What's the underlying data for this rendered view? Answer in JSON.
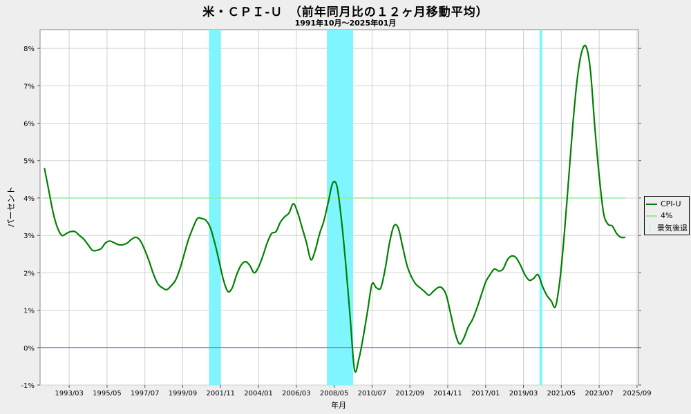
{
  "chart_data": {
    "type": "line",
    "title": "米・ＣＰＩ-Ｕ　（前年同月比の１２ヶ月移動平均）",
    "subtitle": "1991年10月～2025年01月",
    "xlabel": "年月",
    "ylabel": "パーセント",
    "ylim": [
      -1,
      8.5
    ],
    "yticks": [
      -1,
      0,
      1,
      2,
      3,
      4,
      5,
      6,
      7,
      8
    ],
    "ytick_labels": [
      "-1%",
      "0%",
      "1%",
      "2%",
      "3%",
      "4%",
      "5%",
      "6%",
      "7%",
      "8%"
    ],
    "xlim": [
      "1991-07",
      "2025-10"
    ],
    "xtick_labels": [
      "1993/03",
      "1995/05",
      "1997/07",
      "1999/09",
      "2001/11",
      "2004/01",
      "2006/03",
      "2008/05",
      "2010/07",
      "2012/09",
      "2014/11",
      "2017/01",
      "2019/03",
      "2021/05",
      "2023/07",
      "2025/09"
    ],
    "grid": true,
    "legend_position": "right",
    "recessions": [
      {
        "start": "2001-03",
        "end": "2001-11"
      },
      {
        "start": "2007-12",
        "end": "2009-06"
      },
      {
        "start": "2020-02",
        "end": "2020-04"
      }
    ],
    "series": [
      {
        "name": "CPI-U",
        "color": "#008000",
        "points": [
          [
            "1991-10",
            4.8
          ],
          [
            "1992-01",
            4.2
          ],
          [
            "1992-04",
            3.6
          ],
          [
            "1992-07",
            3.2
          ],
          [
            "1992-10",
            3.0
          ],
          [
            "1993-01",
            3.05
          ],
          [
            "1993-04",
            3.1
          ],
          [
            "1993-07",
            3.1
          ],
          [
            "1993-10",
            3.0
          ],
          [
            "1994-01",
            2.9
          ],
          [
            "1994-04",
            2.75
          ],
          [
            "1994-07",
            2.6
          ],
          [
            "1994-10",
            2.6
          ],
          [
            "1995-01",
            2.65
          ],
          [
            "1995-04",
            2.8
          ],
          [
            "1995-07",
            2.85
          ],
          [
            "1995-10",
            2.8
          ],
          [
            "1996-01",
            2.75
          ],
          [
            "1996-04",
            2.75
          ],
          [
            "1996-07",
            2.8
          ],
          [
            "1996-10",
            2.9
          ],
          [
            "1997-01",
            2.95
          ],
          [
            "1997-04",
            2.85
          ],
          [
            "1997-07",
            2.6
          ],
          [
            "1997-10",
            2.3
          ],
          [
            "1998-01",
            1.95
          ],
          [
            "1998-04",
            1.7
          ],
          [
            "1998-07",
            1.6
          ],
          [
            "1998-10",
            1.55
          ],
          [
            "1999-01",
            1.65
          ],
          [
            "1999-04",
            1.8
          ],
          [
            "1999-07",
            2.1
          ],
          [
            "1999-10",
            2.5
          ],
          [
            "2000-01",
            2.9
          ],
          [
            "2000-04",
            3.2
          ],
          [
            "2000-07",
            3.45
          ],
          [
            "2000-10",
            3.45
          ],
          [
            "2001-01",
            3.4
          ],
          [
            "2001-04",
            3.2
          ],
          [
            "2001-07",
            2.8
          ],
          [
            "2001-10",
            2.3
          ],
          [
            "2002-01",
            1.8
          ],
          [
            "2002-04",
            1.5
          ],
          [
            "2002-07",
            1.6
          ],
          [
            "2002-10",
            1.95
          ],
          [
            "2003-01",
            2.2
          ],
          [
            "2003-04",
            2.3
          ],
          [
            "2003-07",
            2.2
          ],
          [
            "2003-10",
            2.0
          ],
          [
            "2004-01",
            2.15
          ],
          [
            "2004-04",
            2.45
          ],
          [
            "2004-07",
            2.8
          ],
          [
            "2004-10",
            3.05
          ],
          [
            "2005-01",
            3.1
          ],
          [
            "2005-04",
            3.35
          ],
          [
            "2005-07",
            3.5
          ],
          [
            "2005-10",
            3.6
          ],
          [
            "2006-01",
            3.85
          ],
          [
            "2006-04",
            3.6
          ],
          [
            "2006-07",
            3.2
          ],
          [
            "2006-10",
            2.8
          ],
          [
            "2007-01",
            2.35
          ],
          [
            "2007-04",
            2.6
          ],
          [
            "2007-07",
            3.05
          ],
          [
            "2007-10",
            3.4
          ],
          [
            "2008-01",
            3.9
          ],
          [
            "2008-04",
            4.4
          ],
          [
            "2008-07",
            4.3
          ],
          [
            "2008-10",
            3.4
          ],
          [
            "2009-01",
            2.2
          ],
          [
            "2009-04",
            0.8
          ],
          [
            "2009-07",
            -0.6
          ],
          [
            "2009-10",
            -0.3
          ],
          [
            "2010-01",
            0.3
          ],
          [
            "2010-04",
            1.0
          ],
          [
            "2010-07",
            1.7
          ],
          [
            "2010-10",
            1.6
          ],
          [
            "2011-01",
            1.6
          ],
          [
            "2011-04",
            2.1
          ],
          [
            "2011-07",
            2.8
          ],
          [
            "2011-10",
            3.25
          ],
          [
            "2012-01",
            3.2
          ],
          [
            "2012-04",
            2.7
          ],
          [
            "2012-07",
            2.2
          ],
          [
            "2012-10",
            1.9
          ],
          [
            "2013-01",
            1.7
          ],
          [
            "2013-04",
            1.6
          ],
          [
            "2013-07",
            1.5
          ],
          [
            "2013-10",
            1.4
          ],
          [
            "2014-01",
            1.5
          ],
          [
            "2014-04",
            1.6
          ],
          [
            "2014-07",
            1.6
          ],
          [
            "2014-10",
            1.4
          ],
          [
            "2015-01",
            0.9
          ],
          [
            "2015-04",
            0.4
          ],
          [
            "2015-07",
            0.1
          ],
          [
            "2015-10",
            0.25
          ],
          [
            "2016-01",
            0.55
          ],
          [
            "2016-04",
            0.75
          ],
          [
            "2016-07",
            1.05
          ],
          [
            "2016-10",
            1.4
          ],
          [
            "2017-01",
            1.75
          ],
          [
            "2017-04",
            1.95
          ],
          [
            "2017-07",
            2.1
          ],
          [
            "2017-10",
            2.05
          ],
          [
            "2018-01",
            2.1
          ],
          [
            "2018-04",
            2.35
          ],
          [
            "2018-07",
            2.45
          ],
          [
            "2018-10",
            2.4
          ],
          [
            "2019-01",
            2.2
          ],
          [
            "2019-04",
            1.95
          ],
          [
            "2019-07",
            1.8
          ],
          [
            "2019-10",
            1.85
          ],
          [
            "2020-01",
            1.95
          ],
          [
            "2020-04",
            1.65
          ],
          [
            "2020-07",
            1.4
          ],
          [
            "2020-10",
            1.25
          ],
          [
            "2021-01",
            1.1
          ],
          [
            "2021-04",
            1.8
          ],
          [
            "2021-07",
            3.0
          ],
          [
            "2021-10",
            4.5
          ],
          [
            "2022-01",
            6.0
          ],
          [
            "2022-04",
            7.2
          ],
          [
            "2022-07",
            7.9
          ],
          [
            "2022-10",
            8.05
          ],
          [
            "2023-01",
            7.4
          ],
          [
            "2023-04",
            5.9
          ],
          [
            "2023-07",
            4.6
          ],
          [
            "2023-10",
            3.6
          ],
          [
            "2024-01",
            3.3
          ],
          [
            "2024-04",
            3.25
          ],
          [
            "2024-07",
            3.05
          ],
          [
            "2024-10",
            2.95
          ],
          [
            "2025-01",
            2.95
          ]
        ]
      },
      {
        "name": "4%",
        "color": "#90ee90",
        "constant": 4,
        "start": "1991-10",
        "end": "2025-01"
      }
    ],
    "recession_legend": {
      "name": "景気後退",
      "color": "#7ff5ff"
    },
    "zero_line_color": "#7070d0"
  }
}
